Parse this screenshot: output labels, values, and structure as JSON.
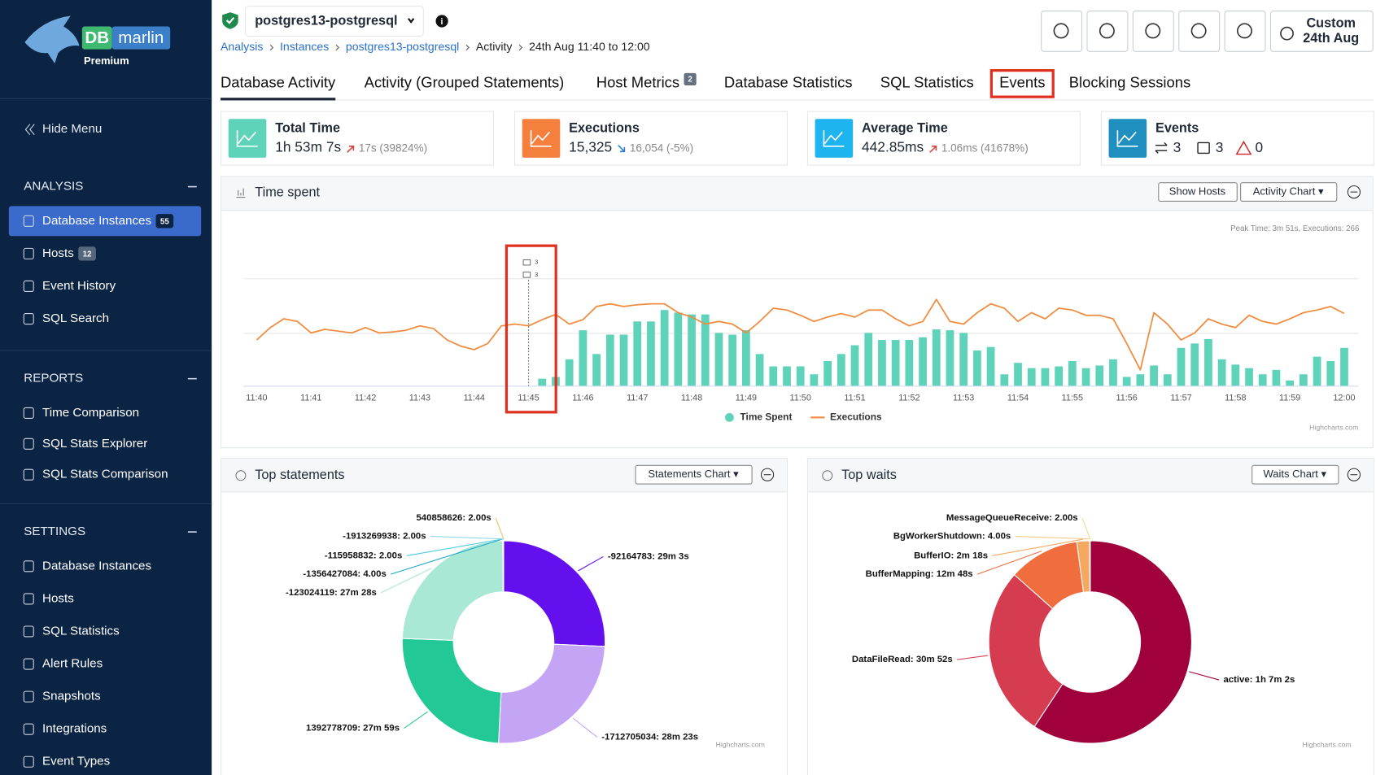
{
  "sidebar": {
    "brand": "DB",
    "brand_name": "marlin",
    "tier": "Premium",
    "hide_menu": "Hide Menu",
    "sections": [
      {
        "title": "ANALYSIS",
        "items": [
          {
            "label": "Database Instances",
            "badge": "55",
            "active": true
          },
          {
            "label": "Hosts",
            "badge": "12"
          },
          {
            "label": "Event History"
          },
          {
            "label": "SQL Search"
          }
        ]
      },
      {
        "title": "REPORTS",
        "items": [
          {
            "label": "Time Comparison"
          },
          {
            "label": "SQL Stats Explorer"
          },
          {
            "label": "SQL Stats Comparison"
          }
        ]
      },
      {
        "title": "SETTINGS",
        "items": [
          {
            "label": "Database Instances"
          },
          {
            "label": "Hosts"
          },
          {
            "label": "SQL Statistics"
          },
          {
            "label": "Alert Rules"
          },
          {
            "label": "Snapshots"
          },
          {
            "label": "Integrations"
          },
          {
            "label": "Event Types"
          }
        ]
      }
    ]
  },
  "header": {
    "instance": "postgres13-postgresql",
    "breadcrumb": [
      {
        "label": "Analysis",
        "link": true
      },
      {
        "label": "Instances",
        "link": true
      },
      {
        "label": "postgres13-postgresql",
        "link": true
      },
      {
        "label": "Activity"
      },
      {
        "label": "24th Aug 11:40 to 12:00"
      }
    ],
    "time_button": [
      "Custom",
      "24th Aug"
    ]
  },
  "tabs": [
    {
      "label": "Database Activity",
      "selected": true
    },
    {
      "label": "Activity (Grouped Statements)"
    },
    {
      "label": "Host Metrics",
      "badge": "2"
    },
    {
      "label": "Database Statistics"
    },
    {
      "label": "SQL Statistics"
    },
    {
      "label": "Events",
      "highlighted": true
    },
    {
      "label": "Blocking Sessions"
    }
  ],
  "cards": [
    {
      "title": "Total Time",
      "value": "1h 53m 7s",
      "change": "17s (39824%)",
      "trend": "up",
      "color": "#5fd3b9"
    },
    {
      "title": "Executions",
      "value": "15,325",
      "change": "16,054 (-5%)",
      "trend": "down",
      "color": "#f5803e"
    },
    {
      "title": "Average Time",
      "value": "442.85ms",
      "change": "1.06ms (41678%)",
      "trend": "up",
      "color": "#1eb4f0"
    },
    {
      "title": "Events",
      "counts": [
        "3",
        "3",
        "0"
      ],
      "color": "#1f8fc0"
    }
  ],
  "time_spent": {
    "title": "Time spent",
    "buttons": [
      "Show Hosts",
      "Activity Chart ▾"
    ],
    "peak": "Peak Time: 3m 51s, Executions: 266",
    "credits": "Highcharts.com",
    "chart_data": {
      "type": "bar_line",
      "ylim": [
        0,
        122
      ],
      "categories": [
        "11:40",
        null,
        null,
        null,
        "11:41",
        null,
        null,
        null,
        "11:42",
        null,
        null,
        null,
        "11:43",
        null,
        null,
        null,
        "11:44",
        null,
        null,
        null,
        "11:45",
        null,
        null,
        null,
        "11:46",
        null,
        null,
        null,
        "11:47",
        null,
        null,
        null,
        "11:48",
        null,
        null,
        null,
        "11:49",
        null,
        null,
        null,
        "11:50",
        null,
        null,
        null,
        "11:51",
        null,
        null,
        null,
        "11:52",
        null,
        null,
        null,
        "11:53",
        null,
        null,
        null,
        "11:54",
        null,
        null,
        null,
        "11:55",
        null,
        null,
        null,
        "11:56",
        null,
        null,
        null,
        "11:57",
        null,
        null,
        null,
        "11:58",
        null,
        null,
        null,
        "11:59",
        null,
        null,
        null,
        "12:00"
      ],
      "series": [
        {
          "name": "Time Spent",
          "kind": "bar",
          "color": "#5fd3b9",
          "values": [
            null,
            null,
            null,
            null,
            null,
            null,
            null,
            null,
            null,
            null,
            null,
            null,
            null,
            null,
            null,
            null,
            null,
            null,
            null,
            null,
            null,
            8,
            10,
            30,
            63,
            36,
            58,
            58,
            73,
            73,
            86,
            83,
            81,
            81,
            60,
            58,
            63,
            36,
            22,
            22,
            22,
            13,
            28,
            36,
            46,
            60,
            52,
            52,
            52,
            55,
            64,
            63,
            60,
            40,
            44,
            13,
            26,
            20,
            20,
            22,
            28,
            20,
            23,
            30,
            10,
            13,
            23,
            13,
            43,
            48,
            53,
            30,
            24,
            20,
            13,
            18,
            6,
            13,
            33,
            28,
            43
          ]
        },
        {
          "name": "Executions",
          "kind": "line",
          "color": "#f08a3c",
          "values": [
            52,
            66,
            76,
            73,
            60,
            64,
            62,
            60,
            66,
            60,
            61,
            63,
            68,
            65,
            52,
            45,
            41,
            48,
            68,
            70,
            68,
            75,
            81,
            70,
            75,
            90,
            93,
            90,
            92,
            93,
            93,
            83,
            78,
            70,
            73,
            70,
            60,
            73,
            88,
            86,
            80,
            73,
            78,
            82,
            78,
            86,
            86,
            76,
            68,
            73,
            98,
            73,
            70,
            83,
            93,
            88,
            73,
            83,
            76,
            88,
            86,
            80,
            80,
            76,
            48,
            18,
            83,
            70,
            52,
            60,
            76,
            70,
            66,
            80,
            73,
            70,
            76,
            83,
            86,
            90,
            82
          ]
        }
      ],
      "annotation": {
        "x": "11:45",
        "counts": [
          "3",
          "3"
        ],
        "color": "#e03020"
      }
    }
  },
  "top_statements": {
    "title": "Top statements",
    "button": "Statements Chart ▾",
    "credits": "Highcharts.com",
    "chart_data": {
      "type": "donut",
      "categories": [
        "-92164783",
        "-1712705034",
        "1392778709",
        "-123024119",
        "-1356427084",
        "-115958832",
        "-1913269938",
        "540858626"
      ],
      "values": [
        1743,
        1703,
        1679,
        1648,
        4,
        2,
        2,
        2
      ],
      "value_labels": [
        "-92164783: 29m 3s",
        "-1712705034: 28m 23s",
        "1392778709: 27m 59s",
        "-123024119: 27m 28s",
        "-1356427084: 4.00s",
        "-115958832: 2.00s",
        "-1913269938: 2.00s",
        "540858626: 2.00s"
      ],
      "colors": [
        "#6410ee",
        "#c4a5f5",
        "#22c997",
        "#a8e8d5",
        "#1aa6c8",
        "#4bc8e0",
        "#7fd6ea",
        "#f0c070"
      ]
    }
  },
  "top_waits": {
    "title": "Top waits",
    "button": "Waits Chart ▾",
    "credits": "Highcharts.com",
    "chart_data": {
      "type": "donut",
      "categories": [
        "active",
        "DataFileRead",
        "BufferMapping",
        "BufferIO",
        "BgWorkerShutdown",
        "MessageQueueReceive"
      ],
      "values": [
        4022,
        1852,
        768,
        138,
        4,
        2
      ],
      "value_labels": [
        "active: 1h 7m 2s",
        "DataFileRead: 30m 52s",
        "BufferMapping: 12m 48s",
        "BufferIO: 2m 18s",
        "BgWorkerShutdown: 4.00s",
        "MessageQueueReceive: 2.00s"
      ],
      "colors": [
        "#a0003c",
        "#d63c50",
        "#f06e3e",
        "#f5a860",
        "#f8c880",
        "#f0d890"
      ]
    }
  }
}
